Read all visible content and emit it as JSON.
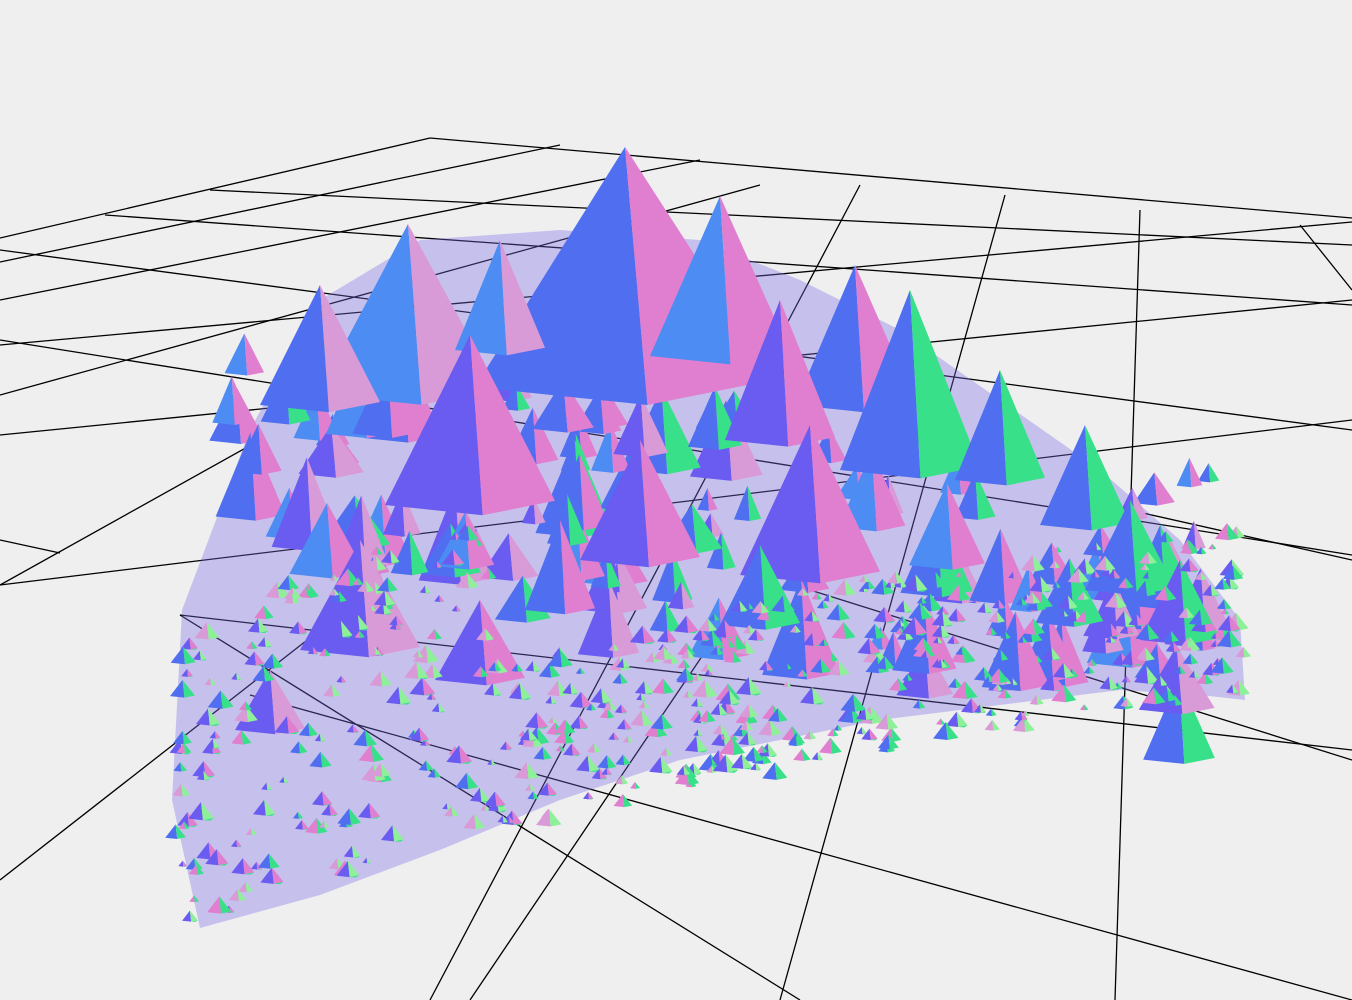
{
  "scene": {
    "background": "#efefef",
    "grid_line_color": "#000000",
    "object": "fractal-pyramid-mesh",
    "material": "normal-shaded",
    "palette": {
      "blue": "#4f6ef0",
      "violet": "#6a5cf0",
      "pink": "#e07fd0",
      "light-pink": "#d99ad8",
      "mint": "#38e08a",
      "light-green": "#8ff09a",
      "sky": "#4d8cf2"
    }
  }
}
